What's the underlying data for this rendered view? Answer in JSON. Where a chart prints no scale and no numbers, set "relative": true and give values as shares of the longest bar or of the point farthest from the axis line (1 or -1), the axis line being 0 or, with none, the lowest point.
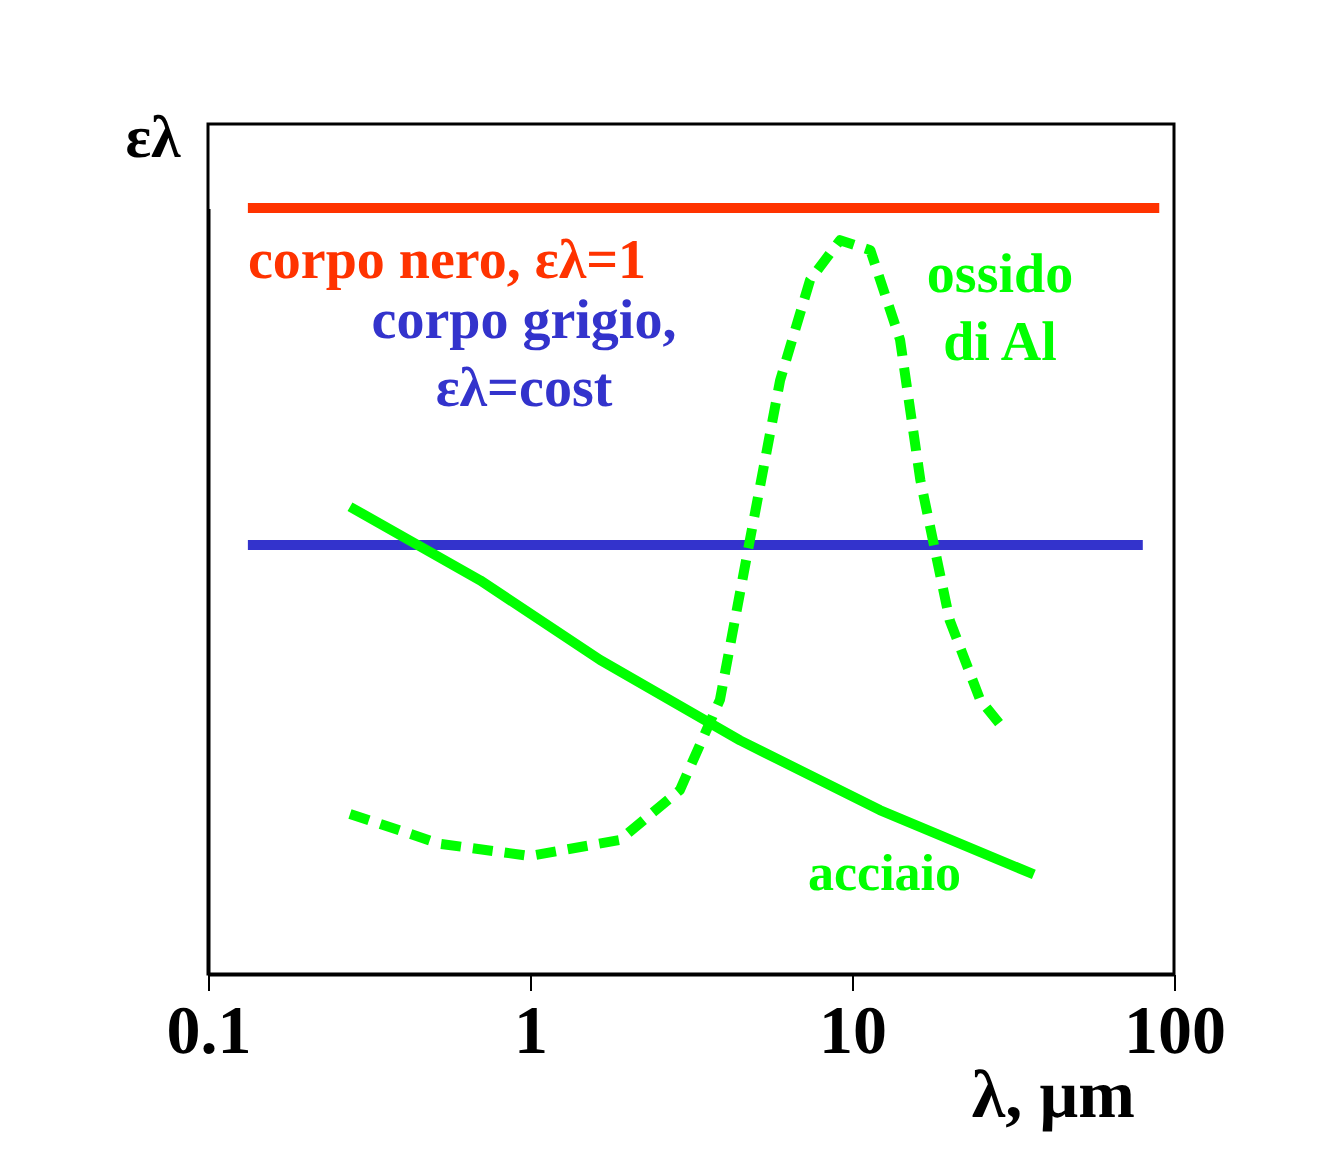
{
  "chart_data": {
    "type": "line",
    "relative": true,
    "log": "x",
    "xlim": [
      0.1,
      100
    ],
    "xticks": [
      0.1,
      1,
      10,
      100
    ],
    "xlabel": "λ, µm",
    "ylabel": "ελ",
    "tick_labels": "x",
    "grid": false,
    "marker": "none",
    "series": [
      {
        "name": "corpo nero, ελ=1",
        "color": "#ff3300",
        "line_style": "solid",
        "x": [
          0.133,
          90
        ],
        "values": [
          1,
          1
        ]
      },
      {
        "name": "corpo grigio, ελ=cost",
        "color": "#3333cc",
        "line_style": "solid",
        "x": [
          0.133,
          80
        ],
        "values": [
          0.56,
          0.56
        ]
      },
      {
        "name": "ossido di Al",
        "color": "#00ff00",
        "line_style": "dashed",
        "x": [
          0.276,
          0.525,
          1.0,
          1.9,
          2.92,
          3.89,
          4.82,
          5.98,
          7.41,
          9.18,
          11.4,
          14.1,
          16.3,
          20.1,
          25.0,
          29.7
        ],
        "values": [
          0.209,
          0.17,
          0.154,
          0.175,
          0.24,
          0.358,
          0.567,
          0.775,
          0.906,
          0.958,
          0.945,
          0.828,
          0.645,
          0.462,
          0.358,
          0.319
        ]
      },
      {
        "name": "acciaio",
        "color": "#00ff00",
        "line_style": "solid",
        "x": [
          0.276,
          0.7,
          1.65,
          4.49,
          12.2,
          36.7
        ],
        "values": [
          0.61,
          0.514,
          0.41,
          0.305,
          0.214,
          0.13
        ]
      }
    ]
  }
}
